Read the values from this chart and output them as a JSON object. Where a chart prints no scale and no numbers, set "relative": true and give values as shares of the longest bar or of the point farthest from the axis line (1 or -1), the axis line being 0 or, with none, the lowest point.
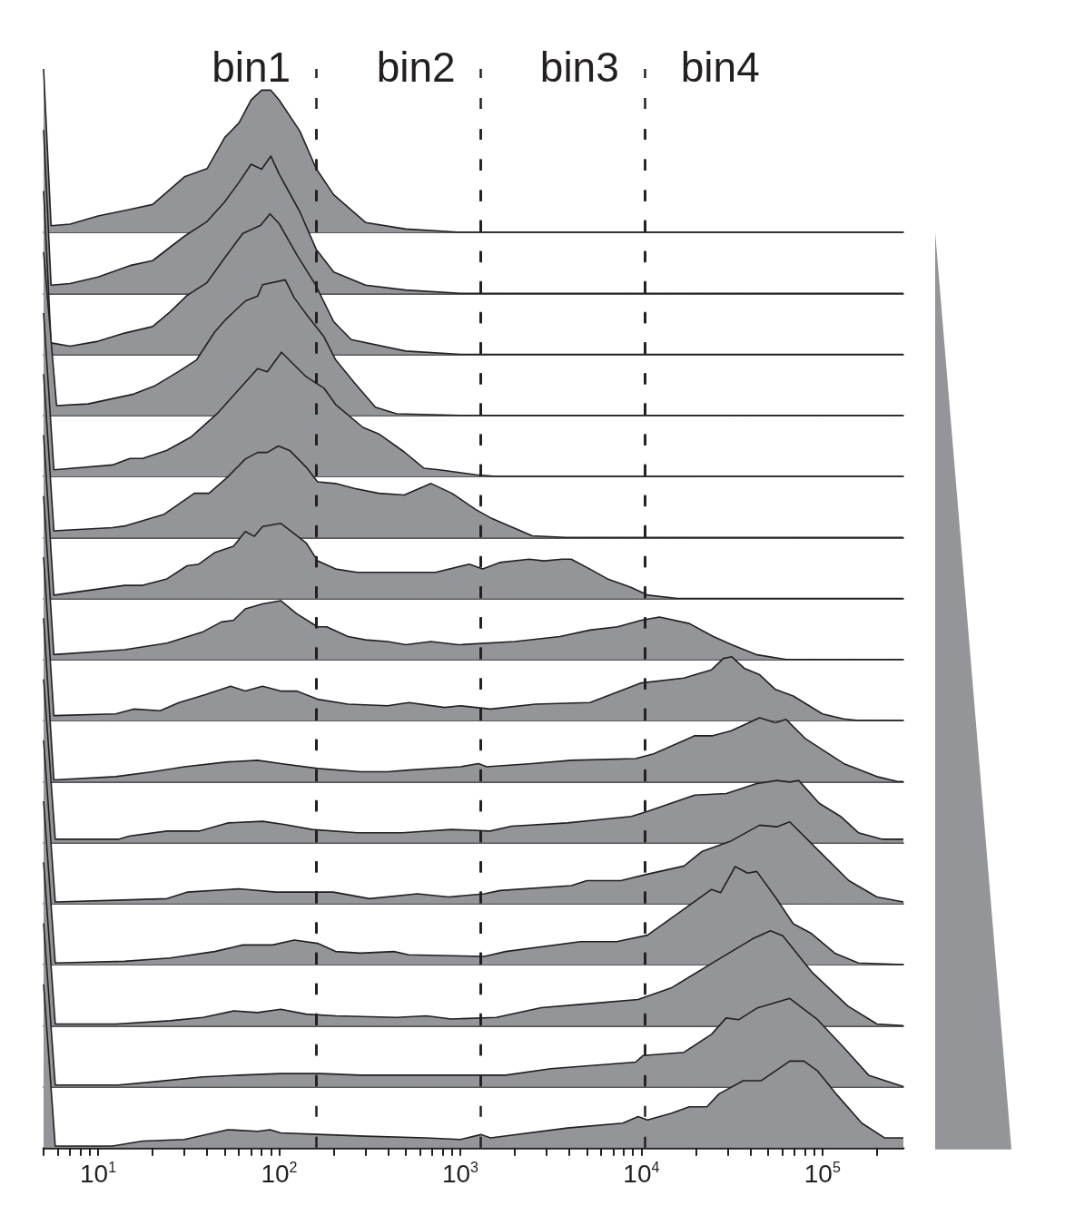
{
  "chart_data": [
    {
      "type": "area",
      "relative": true,
      "log": "x",
      "tick_labels": false,
      "color": "#939598",
      "xlim": [
        5,
        280000
      ],
      "annotations": [
        "bin1",
        "bin2",
        "bin3",
        "bin4"
      ],
      "ref_lines": [
        {
          "axis": "x",
          "value": 160,
          "line_style": "dashed"
        },
        {
          "axis": "x",
          "value": 1300,
          "line_style": "dashed"
        },
        {
          "axis": "x",
          "value": 10400,
          "line_style": "dashed"
        }
      ],
      "x": [
        5,
        5.5,
        7,
        10,
        15,
        20,
        30,
        40,
        50,
        60,
        70,
        80,
        90,
        100,
        130,
        160,
        200,
        300,
        500,
        1000,
        280000
      ],
      "values": [
        1,
        0.04,
        0.05,
        0.1,
        0.14,
        0.17,
        0.34,
        0.39,
        0.58,
        0.67,
        0.81,
        0.87,
        0.87,
        0.81,
        0.62,
        0.39,
        0.23,
        0.06,
        0.02,
        0,
        0
      ]
    },
    {
      "type": "area",
      "relative": true,
      "log": "x",
      "tick_labels": false,
      "color": "#939598",
      "xlim": [
        5,
        280000
      ],
      "ref_lines": [
        {
          "axis": "x",
          "value": 160,
          "line_style": "dashed"
        },
        {
          "axis": "x",
          "value": 1300,
          "line_style": "dashed"
        },
        {
          "axis": "x",
          "value": 10400,
          "line_style": "dashed"
        }
      ],
      "x": [
        5,
        5.5,
        7,
        10,
        15,
        20,
        30,
        40,
        50,
        60,
        70,
        80,
        90,
        100,
        130,
        160,
        200,
        300,
        500,
        1000,
        280000
      ],
      "values": [
        1,
        0.05,
        0.06,
        0.1,
        0.17,
        0.2,
        0.35,
        0.44,
        0.56,
        0.68,
        0.79,
        0.76,
        0.84,
        0.73,
        0.5,
        0.27,
        0.13,
        0.05,
        0.02,
        0,
        0
      ]
    },
    {
      "type": "area",
      "relative": true,
      "log": "x",
      "tick_labels": false,
      "color": "#939598",
      "xlim": [
        5,
        280000
      ],
      "ref_lines": [
        {
          "axis": "x",
          "value": 160,
          "line_style": "dashed"
        },
        {
          "axis": "x",
          "value": 1300,
          "line_style": "dashed"
        },
        {
          "axis": "x",
          "value": 10400,
          "line_style": "dashed"
        }
      ],
      "x": [
        5,
        5.5,
        7,
        10,
        14,
        20,
        25,
        31,
        40,
        50,
        63,
        79,
        89,
        100,
        125,
        158,
        200,
        250,
        500,
        1000,
        280000
      ],
      "values": [
        1,
        0.07,
        0.05,
        0.08,
        0.13,
        0.17,
        0.26,
        0.36,
        0.44,
        0.59,
        0.74,
        0.79,
        0.86,
        0.8,
        0.61,
        0.43,
        0.2,
        0.09,
        0.02,
        0,
        0
      ]
    },
    {
      "type": "area",
      "relative": true,
      "log": "x",
      "tick_labels": false,
      "color": "#939598",
      "xlim": [
        5,
        280000
      ],
      "ref_lines": [
        {
          "axis": "x",
          "value": 160,
          "line_style": "dashed"
        },
        {
          "axis": "x",
          "value": 1300,
          "line_style": "dashed"
        },
        {
          "axis": "x",
          "value": 10400,
          "line_style": "dashed"
        }
      ],
      "x": [
        5,
        5.9,
        8.8,
        15.7,
        20.5,
        28,
        35,
        44,
        51,
        65,
        76,
        81,
        108,
        121,
        141,
        177,
        205,
        260,
        340,
        445,
        1000,
        280000
      ],
      "values": [
        1,
        0.06,
        0.07,
        0.13,
        0.18,
        0.27,
        0.34,
        0.51,
        0.59,
        0.7,
        0.73,
        0.8,
        0.83,
        0.72,
        0.62,
        0.48,
        0.34,
        0.2,
        0.05,
        0.01,
        0,
        0
      ]
    },
    {
      "type": "area",
      "relative": true,
      "log": "x",
      "tick_labels": false,
      "color": "#939598",
      "xlim": [
        5,
        280000
      ],
      "ref_lines": [
        {
          "axis": "x",
          "value": 160,
          "line_style": "dashed"
        },
        {
          "axis": "x",
          "value": 1300,
          "line_style": "dashed"
        },
        {
          "axis": "x",
          "value": 10400,
          "line_style": "dashed"
        }
      ],
      "x": [
        5,
        5.7,
        12,
        15,
        17.6,
        24,
        32.5,
        46,
        76,
        86,
        103,
        141,
        177,
        205,
        290,
        355,
        490,
        630,
        765,
        1220,
        1580,
        280000
      ],
      "values": [
        1,
        0.04,
        0.07,
        0.11,
        0.11,
        0.16,
        0.24,
        0.39,
        0.66,
        0.64,
        0.76,
        0.61,
        0.54,
        0.44,
        0.3,
        0.26,
        0.15,
        0.05,
        0.04,
        0.01,
        0,
        0
      ]
    },
    {
      "type": "area",
      "relative": true,
      "log": "x",
      "tick_labels": false,
      "color": "#939598",
      "xlim": [
        5,
        280000
      ],
      "ref_lines": [
        {
          "axis": "x",
          "value": 160,
          "line_style": "dashed"
        },
        {
          "axis": "x",
          "value": 1300,
          "line_style": "dashed"
        },
        {
          "axis": "x",
          "value": 10400,
          "line_style": "dashed"
        }
      ],
      "x": [
        5,
        5.7,
        12,
        14,
        23,
        34,
        41,
        52,
        65,
        76,
        86,
        99,
        115,
        141,
        163,
        205,
        260,
        355,
        490,
        690,
        900,
        1220,
        1470,
        2500,
        3800,
        280000
      ],
      "values": [
        1,
        0.04,
        0.06,
        0.07,
        0.14,
        0.27,
        0.27,
        0.37,
        0.48,
        0.52,
        0.52,
        0.56,
        0.53,
        0.43,
        0.34,
        0.33,
        0.3,
        0.27,
        0.26,
        0.33,
        0.27,
        0.17,
        0.12,
        0.01,
        0,
        0
      ]
    },
    {
      "type": "area",
      "relative": true,
      "log": "x",
      "tick_labels": false,
      "color": "#939598",
      "xlim": [
        5,
        280000
      ],
      "ref_lines": [
        {
          "axis": "x",
          "value": 160,
          "line_style": "dashed"
        },
        {
          "axis": "x",
          "value": 1300,
          "line_style": "dashed"
        },
        {
          "axis": "x",
          "value": 10400,
          "line_style": "dashed"
        }
      ],
      "x": [
        5,
        5.7,
        14,
        17.6,
        24,
        31,
        36,
        44,
        56,
        65,
        73,
        81,
        102,
        141,
        163,
        205,
        270,
        445,
        730,
        1120,
        1330,
        1650,
        2400,
        2900,
        3650,
        4100,
        5200,
        6500,
        8700,
        10900,
        15800,
        280000
      ],
      "values": [
        1,
        0.02,
        0.08,
        0.08,
        0.12,
        0.2,
        0.21,
        0.28,
        0.32,
        0.41,
        0.38,
        0.44,
        0.46,
        0.34,
        0.23,
        0.18,
        0.16,
        0.16,
        0.16,
        0.21,
        0.18,
        0.22,
        0.24,
        0.23,
        0.24,
        0.24,
        0.18,
        0.12,
        0.07,
        0.02,
        0,
        0
      ]
    },
    {
      "type": "area",
      "relative": true,
      "log": "x",
      "tick_labels": false,
      "color": "#939598",
      "xlim": [
        5,
        280000
      ],
      "ref_lines": [
        {
          "axis": "x",
          "value": 160,
          "line_style": "dashed"
        },
        {
          "axis": "x",
          "value": 1300,
          "line_style": "dashed"
        },
        {
          "axis": "x",
          "value": 10400,
          "line_style": "dashed"
        }
      ],
      "x": [
        5,
        5.7,
        14,
        24,
        38,
        48,
        56,
        65,
        81,
        102,
        125,
        163,
        183,
        240,
        300,
        397,
        500,
        690,
        975,
        2000,
        3550,
        5200,
        7400,
        10000,
        12600,
        18400,
        25000,
        31600,
        43000,
        63000,
        280000
      ],
      "values": [
        1,
        0.03,
        0.06,
        0.1,
        0.17,
        0.23,
        0.24,
        0.31,
        0.34,
        0.36,
        0.28,
        0.2,
        0.2,
        0.14,
        0.12,
        0.11,
        0.09,
        0.11,
        0.09,
        0.11,
        0.14,
        0.18,
        0.2,
        0.24,
        0.26,
        0.22,
        0.14,
        0.09,
        0.03,
        0,
        0
      ]
    },
    {
      "type": "area",
      "relative": true,
      "log": "x",
      "tick_labels": false,
      "color": "#939598",
      "xlim": [
        5,
        280000
      ],
      "ref_lines": [
        {
          "axis": "x",
          "value": 160,
          "line_style": "dashed"
        },
        {
          "axis": "x",
          "value": 1300,
          "line_style": "dashed"
        },
        {
          "axis": "x",
          "value": 10400,
          "line_style": "dashed"
        }
      ],
      "x": [
        5,
        5.7,
        12.5,
        15.7,
        22,
        28,
        39.5,
        54,
        65,
        81,
        102,
        125,
        163,
        240,
        397,
        520,
        820,
        1000,
        1470,
        2600,
        5200,
        10000,
        17200,
        24400,
        28400,
        31600,
        37000,
        45000,
        55000,
        69000,
        100000,
        131000,
        158000,
        280000
      ],
      "values": [
        1,
        0.03,
        0.04,
        0.07,
        0.06,
        0.11,
        0.16,
        0.21,
        0.18,
        0.21,
        0.18,
        0.18,
        0.13,
        0.1,
        0.09,
        0.11,
        0.08,
        0.09,
        0.07,
        0.1,
        0.11,
        0.23,
        0.26,
        0.31,
        0.38,
        0.39,
        0.32,
        0.28,
        0.19,
        0.15,
        0.04,
        0.01,
        0,
        0
      ]
    },
    {
      "type": "area",
      "relative": true,
      "log": "x",
      "tick_labels": false,
      "color": "#939598",
      "xlim": [
        5,
        280000
      ],
      "ref_lines": [
        {
          "axis": "x",
          "value": 160,
          "line_style": "dashed"
        },
        {
          "axis": "x",
          "value": 1300,
          "line_style": "dashed"
        },
        {
          "axis": "x",
          "value": 10400,
          "line_style": "dashed"
        }
      ],
      "x": [
        5,
        5.7,
        12.5,
        20,
        30,
        52,
        76,
        102,
        163,
        281,
        397,
        520,
        1000,
        1260,
        1400,
        2500,
        4100,
        9300,
        11700,
        19700,
        24800,
        31200,
        45000,
        55000,
        63000,
        81000,
        131000,
        200000,
        260000,
        280000
      ],
      "values": [
        1,
        0.01,
        0.03,
        0.06,
        0.09,
        0.12,
        0.13,
        0.11,
        0.08,
        0.06,
        0.06,
        0.07,
        0.09,
        0.11,
        0.09,
        0.11,
        0.13,
        0.14,
        0.17,
        0.28,
        0.28,
        0.31,
        0.39,
        0.36,
        0.38,
        0.26,
        0.11,
        0.03,
        0,
        0
      ]
    },
    {
      "type": "area",
      "relative": true,
      "log": "x",
      "tick_labels": false,
      "color": "#939598",
      "xlim": [
        5,
        280000
      ],
      "ref_lines": [
        {
          "axis": "x",
          "value": 160,
          "line_style": "dashed"
        },
        {
          "axis": "x",
          "value": 1300,
          "line_style": "dashed"
        },
        {
          "axis": "x",
          "value": 10400,
          "line_style": "dashed"
        }
      ],
      "x": [
        5,
        5.8,
        12.9,
        15,
        24,
        36,
        52,
        81,
        108,
        152,
        270,
        480,
        890,
        1460,
        1920,
        3900,
        8800,
        10800,
        19700,
        29500,
        43000,
        56000,
        66000,
        74000,
        96000,
        126000,
        158000,
        215000,
        280000
      ],
      "values": [
        1,
        0.02,
        0.02,
        0.04,
        0.07,
        0.07,
        0.12,
        0.13,
        0.11,
        0.08,
        0.06,
        0.06,
        0.08,
        0.07,
        0.1,
        0.12,
        0.16,
        0.19,
        0.29,
        0.3,
        0.36,
        0.38,
        0.37,
        0.38,
        0.24,
        0.16,
        0.06,
        0.02,
        0.02
      ]
    },
    {
      "type": "area",
      "relative": true,
      "log": "x",
      "tick_labels": false,
      "color": "#939598",
      "xlim": [
        5,
        280000
      ],
      "ref_lines": [
        {
          "axis": "x",
          "value": 160,
          "line_style": "dashed"
        },
        {
          "axis": "x",
          "value": 1300,
          "line_style": "dashed"
        },
        {
          "axis": "x",
          "value": 10400,
          "line_style": "dashed"
        }
      ],
      "x": [
        5,
        5.8,
        12.5,
        24,
        31,
        60,
        96,
        121,
        199,
        316,
        580,
        860,
        1360,
        1660,
        4100,
        5000,
        7700,
        10800,
        17200,
        21700,
        30900,
        45000,
        56000,
        66000,
        96000,
        140000,
        200000,
        280000
      ],
      "values": [
        1,
        0.01,
        0.02,
        0.03,
        0.07,
        0.09,
        0.07,
        0.07,
        0.07,
        0.03,
        0.06,
        0.04,
        0.06,
        0.08,
        0.11,
        0.14,
        0.14,
        0.18,
        0.23,
        0.32,
        0.38,
        0.48,
        0.47,
        0.5,
        0.32,
        0.14,
        0.04,
        0.01
      ]
    },
    {
      "type": "area",
      "relative": true,
      "log": "x",
      "tick_labels": false,
      "color": "#939598",
      "xlim": [
        5,
        280000
      ],
      "ref_lines": [
        {
          "axis": "x",
          "value": 160,
          "line_style": "dashed"
        },
        {
          "axis": "x",
          "value": 1300,
          "line_style": "dashed"
        },
        {
          "axis": "x",
          "value": 10400,
          "line_style": "dashed"
        }
      ],
      "x": [
        5,
        5.8,
        14,
        25,
        44,
        63,
        92,
        121,
        163,
        205,
        281,
        430,
        520,
        1360,
        1780,
        4600,
        7300,
        10800,
        15800,
        24400,
        27400,
        33000,
        38600,
        43400,
        56000,
        69000,
        87000,
        117000,
        158000,
        280000
      ],
      "values": [
        1,
        0.01,
        0.02,
        0.04,
        0.08,
        0.12,
        0.12,
        0.15,
        0.13,
        0.08,
        0.07,
        0.08,
        0.06,
        0.05,
        0.08,
        0.14,
        0.14,
        0.18,
        0.31,
        0.46,
        0.44,
        0.6,
        0.56,
        0.57,
        0.4,
        0.25,
        0.19,
        0.07,
        0.01,
        0
      ]
    },
    {
      "type": "area",
      "relative": true,
      "log": "x",
      "tick_labels": false,
      "color": "#939598",
      "xlim": [
        5,
        280000
      ],
      "ref_lines": [
        {
          "axis": "x",
          "value": 160,
          "line_style": "dashed"
        },
        {
          "axis": "x",
          "value": 1300,
          "line_style": "dashed"
        },
        {
          "axis": "x",
          "value": 10400,
          "line_style": "dashed"
        }
      ],
      "x": [
        5,
        5.8,
        12.5,
        25,
        38,
        56,
        76,
        102,
        141,
        205,
        445,
        650,
        890,
        1580,
        2800,
        4600,
        9600,
        14600,
        24400,
        41000,
        51600,
        60400,
        87000,
        138000,
        200000,
        280000
      ],
      "values": [
        1,
        0.01,
        0.01,
        0.03,
        0.05,
        0.09,
        0.08,
        0.1,
        0.07,
        0.06,
        0.05,
        0.06,
        0.04,
        0.05,
        0.11,
        0.13,
        0.16,
        0.23,
        0.38,
        0.53,
        0.58,
        0.55,
        0.33,
        0.12,
        0.01,
        0
      ]
    },
    {
      "type": "area",
      "relative": true,
      "log": "x",
      "tick_labels": false,
      "color": "#939598",
      "xlim": [
        5,
        280000
      ],
      "ref_lines": [
        {
          "axis": "x",
          "value": 160,
          "line_style": "dashed"
        },
        {
          "axis": "x",
          "value": 1300,
          "line_style": "dashed"
        },
        {
          "axis": "x",
          "value": 10400,
          "line_style": "dashed"
        }
      ],
      "x": [
        5,
        5.8,
        12.9,
        20.5,
        38,
        60,
        102,
        170,
        281,
        540,
        1780,
        3160,
        9300,
        10200,
        17200,
        24400,
        29400,
        34600,
        43400,
        66000,
        94000,
        131000,
        180000,
        280000
      ],
      "values": [
        1,
        0.01,
        0.01,
        0.03,
        0.06,
        0.07,
        0.08,
        0.08,
        0.07,
        0.07,
        0.07,
        0.11,
        0.15,
        0.19,
        0.21,
        0.32,
        0.42,
        0.41,
        0.48,
        0.54,
        0.41,
        0.24,
        0.07,
        0
      ]
    },
    {
      "type": "area",
      "relative": true,
      "log": "x",
      "tick_labels": "x",
      "color": "#939598",
      "xlim": [
        5,
        280000
      ],
      "ref_lines": [
        {
          "axis": "x",
          "value": 160,
          "line_style": "dashed"
        },
        {
          "axis": "x",
          "value": 1300,
          "line_style": "dashed"
        },
        {
          "axis": "x",
          "value": 10400,
          "line_style": "dashed"
        }
      ],
      "xticks": [
        {
          "value": 5,
          "label": null
        },
        {
          "value": 6,
          "label": null
        },
        {
          "value": 7,
          "label": null
        },
        {
          "value": 8,
          "label": null
        },
        {
          "value": 9,
          "label": null
        },
        {
          "value": 10,
          "label": "10$^{1}$"
        },
        {
          "value": 20,
          "label": null
        },
        {
          "value": 30,
          "label": null
        },
        {
          "value": 40,
          "label": null
        },
        {
          "value": 50,
          "label": null
        },
        {
          "value": 60,
          "label": null
        },
        {
          "value": 70,
          "label": null
        },
        {
          "value": 80,
          "label": null
        },
        {
          "value": 90,
          "label": null
        },
        {
          "value": 100,
          "label": "10$^{2}$"
        },
        {
          "value": 200,
          "label": null
        },
        {
          "value": 300,
          "label": null
        },
        {
          "value": 400,
          "label": null
        },
        {
          "value": 500,
          "label": null
        },
        {
          "value": 600,
          "label": null
        },
        {
          "value": 700,
          "label": null
        },
        {
          "value": 800,
          "label": null
        },
        {
          "value": 900,
          "label": null
        },
        {
          "value": 1000,
          "label": "10$^{3}$"
        },
        {
          "value": 2000,
          "label": null
        },
        {
          "value": 3000,
          "label": null
        },
        {
          "value": 4000,
          "label": null
        },
        {
          "value": 5000,
          "label": null
        },
        {
          "value": 6000,
          "label": null
        },
        {
          "value": 7000,
          "label": null
        },
        {
          "value": 8000,
          "label": null
        },
        {
          "value": 9000,
          "label": null
        },
        {
          "value": 10000,
          "label": "10$^{4}$"
        },
        {
          "value": 20000,
          "label": null
        },
        {
          "value": 30000,
          "label": null
        },
        {
          "value": 40000,
          "label": null
        },
        {
          "value": 50000,
          "label": null
        },
        {
          "value": 60000,
          "label": null
        },
        {
          "value": 70000,
          "label": null
        },
        {
          "value": 80000,
          "label": null
        },
        {
          "value": 90000,
          "label": null
        },
        {
          "value": 100000,
          "label": "10$^{5}$"
        },
        {
          "value": 200000,
          "label": null
        }
      ],
      "x": [
        5,
        5.8,
        12,
        17.6,
        30,
        52,
        76,
        89,
        102,
        177,
        300,
        650,
        1000,
        1300,
        1470,
        3900,
        7900,
        9600,
        10800,
        14600,
        18400,
        23000,
        26900,
        36500,
        46000,
        66000,
        79000,
        94000,
        121000,
        165000,
        220000,
        280000
      ],
      "values": [
        1,
        0.01,
        0.01,
        0.04,
        0.05,
        0.11,
        0.1,
        0.11,
        0.09,
        0.08,
        0.07,
        0.06,
        0.05,
        0.08,
        0.06,
        0.12,
        0.15,
        0.19,
        0.17,
        0.21,
        0.25,
        0.25,
        0.33,
        0.41,
        0.41,
        0.53,
        0.53,
        0.47,
        0.32,
        0.15,
        0.06,
        0.06
      ]
    }
  ]
}
